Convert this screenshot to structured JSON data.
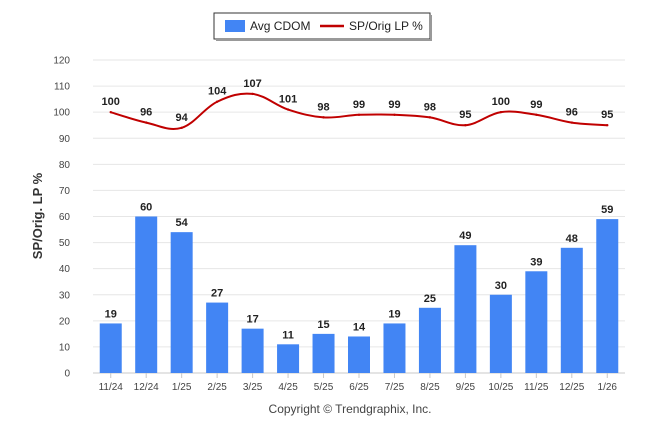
{
  "chart_data": {
    "type": "bar",
    "title": "",
    "xlabel": "",
    "ylabel": "SP/Orig. LP %",
    "ylim": [
      0,
      120
    ],
    "ytick_step": 10,
    "grid": true,
    "legend_position": "top-center",
    "categories": [
      "11/24",
      "12/24",
      "1/25",
      "2/25",
      "3/25",
      "4/25",
      "5/25",
      "6/25",
      "7/25",
      "8/25",
      "9/25",
      "10/25",
      "11/25",
      "12/25",
      "1/26"
    ],
    "series": [
      {
        "name": "Avg CDOM",
        "kind": "bar",
        "color": "#4285f4",
        "values": [
          19,
          60,
          54,
          27,
          17,
          11,
          15,
          14,
          19,
          25,
          49,
          30,
          39,
          48,
          59
        ]
      },
      {
        "name": "SP/Orig LP %",
        "kind": "line",
        "color": "#c00000",
        "values": [
          100,
          96,
          94,
          104,
          107,
          101,
          98,
          99,
          99,
          98,
          95,
          100,
          99,
          96,
          95
        ]
      }
    ]
  },
  "footer": {
    "copyright": "Copyright © Trendgraphix, Inc."
  }
}
